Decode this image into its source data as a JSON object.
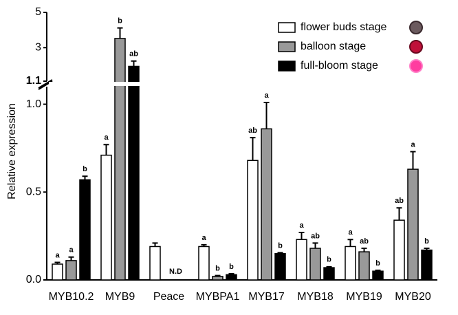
{
  "chart_data": {
    "type": "bar",
    "y_label": "Relative expression",
    "categories": [
      "MYB10.2",
      "MYB9",
      "Peace",
      "MYBPA1",
      "MYB17",
      "MYB18",
      "MYB19",
      "MYB20"
    ],
    "ylim": [
      0,
      1.1
    ],
    "yticks": [
      {
        "value": 0,
        "label": "0.0"
      },
      0.5,
      {
        "value": 1,
        "label": "1.0"
      }
    ],
    "y2lim": [
      1.1,
      5
    ],
    "y2ticks": [
      1.1,
      3,
      5
    ],
    "series": [
      {
        "name": "flower buds stage",
        "color": "#ffffff",
        "values": [
          0.09,
          0.71,
          0.19,
          0.19,
          0.68,
          0.23,
          0.19,
          0.34
        ],
        "errors": [
          0.01,
          0.06,
          0.02,
          0.01,
          0.13,
          0.04,
          0.04,
          0.07
        ],
        "letters": [
          "a",
          "a",
          null,
          "a",
          "ab",
          "a",
          "a",
          "ab"
        ]
      },
      {
        "name": "balloon stage",
        "color": "#999999",
        "values": [
          0.11,
          3.52,
          null,
          0.02,
          0.86,
          0.18,
          0.16,
          0.63
        ],
        "errors": [
          0.02,
          0.6,
          null,
          0.005,
          0.15,
          0.03,
          0.02,
          0.1
        ],
        "letters": [
          "a",
          "b",
          null,
          "b",
          "a",
          "ab",
          "ab",
          "a"
        ]
      },
      {
        "name": "full-bloom stage",
        "color": "#000000",
        "values": [
          0.57,
          1.94,
          null,
          0.03,
          0.15,
          0.07,
          0.05,
          0.17
        ],
        "errors": [
          0.02,
          0.3,
          null,
          0.005,
          0.005,
          0.005,
          0.005,
          0.01
        ],
        "letters": [
          "b",
          "ab",
          null,
          "b",
          "b",
          "b",
          "b",
          "b"
        ]
      }
    ],
    "annotations": [
      {
        "text": "N.D",
        "category": "Peace"
      }
    ]
  }
}
